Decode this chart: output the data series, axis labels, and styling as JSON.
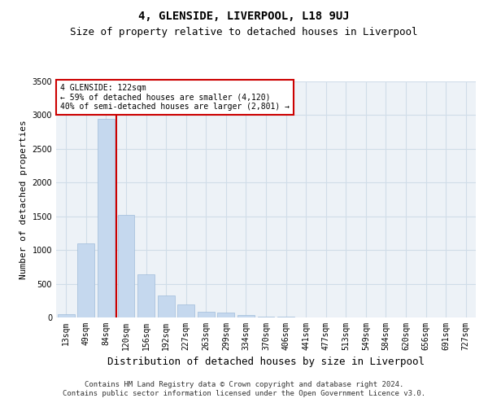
{
  "title": "4, GLENSIDE, LIVERPOOL, L18 9UJ",
  "subtitle": "Size of property relative to detached houses in Liverpool",
  "xlabel": "Distribution of detached houses by size in Liverpool",
  "ylabel": "Number of detached properties",
  "footer_line1": "Contains HM Land Registry data © Crown copyright and database right 2024.",
  "footer_line2": "Contains public sector information licensed under the Open Government Licence v3.0.",
  "categories": [
    "13sqm",
    "49sqm",
    "84sqm",
    "120sqm",
    "156sqm",
    "192sqm",
    "227sqm",
    "263sqm",
    "299sqm",
    "334sqm",
    "370sqm",
    "406sqm",
    "441sqm",
    "477sqm",
    "513sqm",
    "549sqm",
    "584sqm",
    "620sqm",
    "656sqm",
    "691sqm",
    "727sqm"
  ],
  "values": [
    50,
    1100,
    2950,
    1520,
    640,
    330,
    195,
    85,
    75,
    40,
    18,
    8,
    4,
    3,
    2,
    2,
    1,
    1,
    1,
    1,
    1
  ],
  "bar_color": "#c5d8ee",
  "bar_edge_color": "#a0bcda",
  "vline_color": "#cc0000",
  "annotation_text": "4 GLENSIDE: 122sqm\n← 59% of detached houses are smaller (4,120)\n40% of semi-detached houses are larger (2,801) →",
  "annotation_box_color": "#cc0000",
  "ylim": [
    0,
    3500
  ],
  "yticks": [
    0,
    500,
    1000,
    1500,
    2000,
    2500,
    3000,
    3500
  ],
  "grid_color": "#d0dde8",
  "bg_color": "#edf2f7",
  "title_fontsize": 10,
  "subtitle_fontsize": 9,
  "tick_fontsize": 7,
  "ylabel_fontsize": 8,
  "xlabel_fontsize": 9
}
